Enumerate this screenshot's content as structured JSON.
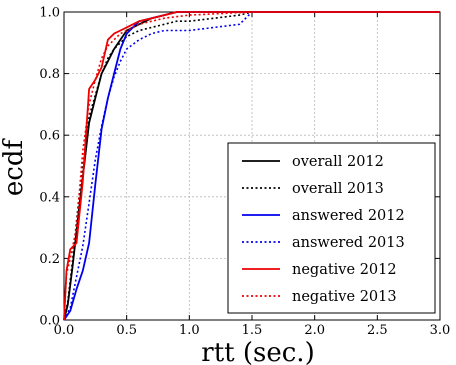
{
  "chart_data": {
    "type": "line",
    "title": "",
    "xlabel": "rtt (sec.)",
    "ylabel": "ecdf",
    "xlim": [
      0,
      3.0
    ],
    "ylim": [
      0,
      1.0
    ],
    "xticks": [
      "0.0",
      "0.5",
      "1.0",
      "1.5",
      "2.0",
      "2.5",
      "3.0"
    ],
    "yticks": [
      "0.0",
      "0.2",
      "0.4",
      "0.6",
      "0.8",
      "1.0"
    ],
    "grid": true,
    "legend_position": "bottom-right",
    "series": [
      {
        "name": "overall 2012",
        "color": "#000000",
        "style": "solid",
        "x": [
          0,
          0.03,
          0.07,
          0.12,
          0.16,
          0.2,
          0.25,
          0.3,
          0.35,
          0.4,
          0.45,
          0.5,
          0.6,
          0.7,
          0.8,
          0.9,
          1.0,
          1.5,
          3.0
        ],
        "y": [
          0,
          0.05,
          0.18,
          0.36,
          0.5,
          0.64,
          0.72,
          0.8,
          0.84,
          0.88,
          0.91,
          0.94,
          0.96,
          0.98,
          0.99,
          1.0,
          1.0,
          1.0,
          1.0
        ]
      },
      {
        "name": "overall 2013",
        "color": "#000000",
        "style": "dotted",
        "x": [
          0,
          0.03,
          0.07,
          0.12,
          0.16,
          0.2,
          0.25,
          0.3,
          0.35,
          0.4,
          0.45,
          0.5,
          0.6,
          0.7,
          0.8,
          0.9,
          1.0,
          1.2,
          1.4,
          1.5,
          3.0
        ],
        "y": [
          0,
          0.06,
          0.2,
          0.4,
          0.53,
          0.66,
          0.73,
          0.8,
          0.85,
          0.88,
          0.9,
          0.92,
          0.94,
          0.95,
          0.96,
          0.97,
          0.97,
          0.98,
          0.99,
          1.0,
          1.0
        ]
      },
      {
        "name": "answered 2012",
        "color": "#0000ee",
        "style": "solid",
        "x": [
          0,
          0.05,
          0.1,
          0.15,
          0.2,
          0.25,
          0.3,
          0.35,
          0.4,
          0.45,
          0.5,
          0.55,
          0.6,
          0.7,
          0.8,
          0.9,
          1.0,
          1.5,
          3.0
        ],
        "y": [
          0,
          0.03,
          0.1,
          0.16,
          0.25,
          0.44,
          0.62,
          0.72,
          0.8,
          0.88,
          0.93,
          0.95,
          0.97,
          0.98,
          0.99,
          1.0,
          1.0,
          1.0,
          1.0
        ]
      },
      {
        "name": "answered 2013",
        "color": "#0000ee",
        "style": "dotted",
        "x": [
          0,
          0.05,
          0.1,
          0.15,
          0.2,
          0.25,
          0.3,
          0.35,
          0.4,
          0.45,
          0.5,
          0.6,
          0.7,
          0.8,
          1.0,
          1.2,
          1.4,
          1.5,
          3.0
        ],
        "y": [
          0,
          0.04,
          0.14,
          0.24,
          0.38,
          0.52,
          0.63,
          0.72,
          0.79,
          0.84,
          0.88,
          0.91,
          0.93,
          0.94,
          0.94,
          0.95,
          0.96,
          1.0,
          1.0
        ]
      },
      {
        "name": "negative 2012",
        "color": "#ee0000",
        "style": "solid",
        "x": [
          0,
          0.02,
          0.05,
          0.1,
          0.15,
          0.2,
          0.25,
          0.3,
          0.35,
          0.4,
          0.45,
          0.5,
          0.6,
          0.7,
          0.8,
          0.9,
          1.0,
          1.5,
          3.0
        ],
        "y": [
          0,
          0.16,
          0.23,
          0.25,
          0.45,
          0.75,
          0.78,
          0.82,
          0.91,
          0.93,
          0.94,
          0.95,
          0.97,
          0.98,
          0.99,
          1.0,
          1.0,
          1.0,
          1.0
        ]
      },
      {
        "name": "negative 2013",
        "color": "#ee0000",
        "style": "dotted",
        "x": [
          0,
          0.02,
          0.05,
          0.1,
          0.15,
          0.2,
          0.25,
          0.3,
          0.35,
          0.4,
          0.45,
          0.5,
          0.6,
          0.7,
          0.8,
          1.0,
          1.5,
          3.0
        ],
        "y": [
          0,
          0.15,
          0.2,
          0.3,
          0.55,
          0.7,
          0.78,
          0.85,
          0.89,
          0.91,
          0.93,
          0.94,
          0.96,
          0.97,
          0.98,
          0.99,
          1.0,
          1.0
        ]
      }
    ]
  }
}
